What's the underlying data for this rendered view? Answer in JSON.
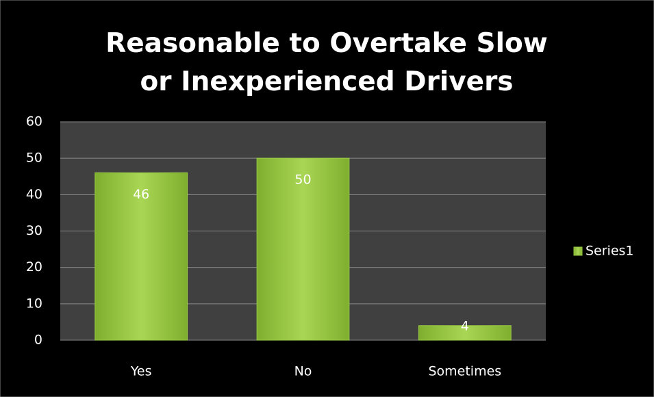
{
  "chart_data": {
    "type": "bar",
    "title": "Reasonable to Overtake Slow or Inexperienced Drivers",
    "categories": [
      "Yes",
      "No",
      "Sometimes"
    ],
    "series": [
      {
        "name": "Series1",
        "color": "#9acd45",
        "values": [
          46,
          50,
          4
        ]
      }
    ],
    "ylim": [
      0,
      60
    ],
    "yticks": [
      0,
      10,
      20,
      30,
      40,
      50,
      60
    ],
    "grid": true,
    "legend": "right"
  }
}
